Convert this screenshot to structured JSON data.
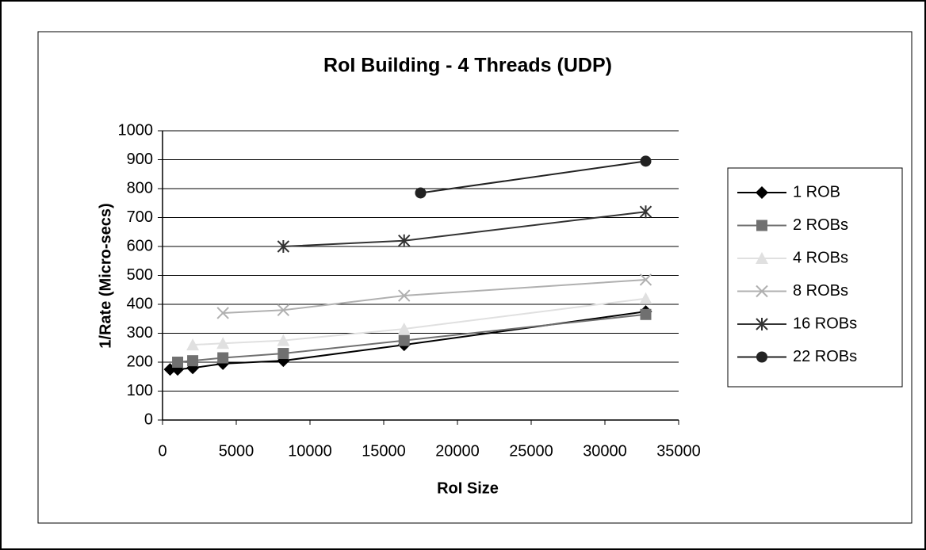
{
  "chart_data": {
    "type": "line",
    "title": "RoI Building - 4 Threads (UDP)",
    "xlabel": "RoI Size",
    "ylabel": "1/Rate (Micro-secs)",
    "xlim": [
      0,
      35000
    ],
    "xticks": [
      0,
      5000,
      10000,
      15000,
      20000,
      25000,
      30000,
      35000
    ],
    "ylim": [
      0,
      1000
    ],
    "yticks": [
      0,
      100,
      200,
      300,
      400,
      500,
      600,
      700,
      800,
      900,
      1000
    ],
    "grid": true,
    "legend": "right",
    "series": [
      {
        "name": "1 ROB",
        "color": "#000000",
        "marker": "diamond",
        "x": [
          512,
          1024,
          2048,
          4096,
          8192,
          16384,
          32768
        ],
        "values": [
          175,
          175,
          180,
          195,
          205,
          260,
          375
        ]
      },
      {
        "name": "2 ROBs",
        "color": "#707070",
        "marker": "square",
        "x": [
          1024,
          2048,
          4096,
          8192,
          16384,
          32768
        ],
        "values": [
          200,
          205,
          215,
          230,
          275,
          365
        ]
      },
      {
        "name": "4 ROBs",
        "color": "#e0e0e0",
        "marker": "triangle",
        "x": [
          2048,
          4096,
          8192,
          16384,
          32768
        ],
        "values": [
          260,
          265,
          275,
          315,
          420
        ]
      },
      {
        "name": "8 ROBs",
        "color": "#b0b0b0",
        "marker": "x",
        "x": [
          4096,
          8192,
          16384,
          32768
        ],
        "values": [
          370,
          380,
          430,
          485
        ]
      },
      {
        "name": "16 ROBs",
        "color": "#333333",
        "marker": "star",
        "x": [
          8192,
          16384,
          32768
        ],
        "values": [
          600,
          620,
          720
        ]
      },
      {
        "name": "22 ROBs",
        "color": "#222222",
        "marker": "circle",
        "x": [
          17500,
          32768
        ],
        "values": [
          785,
          895
        ]
      }
    ]
  }
}
